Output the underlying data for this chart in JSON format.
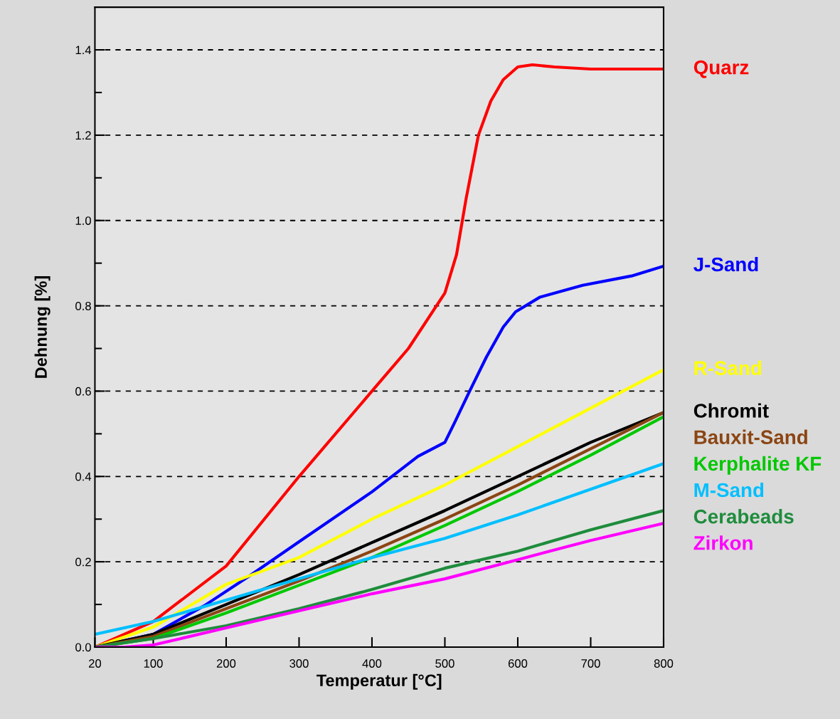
{
  "chart_data": {
    "type": "line",
    "xlabel": "Temperatur [°C]",
    "ylabel": "Dehnung [%]",
    "xlim": [
      20,
      800
    ],
    "xticks": [
      20,
      100,
      200,
      300,
      400,
      500,
      600,
      700,
      800
    ],
    "ylim": [
      0,
      1.5
    ],
    "yticks": [
      {
        "value": 0,
        "label": "0.0"
      },
      {
        "value": 0.1,
        "label": null
      },
      0.2,
      {
        "value": 0.3,
        "label": null
      },
      0.4,
      {
        "value": 0.5,
        "label": null
      },
      0.6,
      {
        "value": 0.7,
        "label": null
      },
      0.8,
      {
        "value": 0.9,
        "label": null
      },
      {
        "value": 1.0,
        "label": "1.0"
      },
      {
        "value": 1.1,
        "label": null
      },
      1.2,
      {
        "value": 1.3,
        "label": null
      },
      1.4
    ],
    "grid": "y",
    "legend": false,
    "marker": "none",
    "line_style": "solid",
    "series": [
      {
        "name": "Quarz",
        "color": "#ff0000",
        "x": [
          20,
          100,
          200,
          300,
          400,
          450,
          500,
          516,
          529,
          546,
          563,
          580,
          600,
          620,
          650,
          700,
          800
        ],
        "values": [
          0,
          0.06,
          0.19,
          0.4,
          0.6,
          0.7,
          0.83,
          0.92,
          1.05,
          1.2,
          1.28,
          1.33,
          1.36,
          1.365,
          1.36,
          1.355,
          1.355
        ]
      },
      {
        "name": "J-Sand",
        "color": "#0000ff",
        "x": [
          20,
          100,
          170,
          232,
          300,
          400,
          463,
          500,
          513,
          534,
          557,
          580,
          597,
          630,
          689,
          756,
          800
        ],
        "values": [
          0,
          0.03,
          0.097,
          0.167,
          0.247,
          0.364,
          0.447,
          0.48,
          0.525,
          0.6,
          0.68,
          0.75,
          0.786,
          0.82,
          0.848,
          0.87,
          0.893
        ]
      },
      {
        "name": "R-Sand",
        "color": "#ffff00",
        "x": [
          20,
          100,
          200,
          300,
          400,
          500,
          600,
          700,
          800
        ],
        "values": [
          0,
          0.047,
          0.147,
          0.21,
          0.3,
          0.38,
          0.47,
          0.56,
          0.65
        ]
      },
      {
        "name": "Chromit",
        "color": "#000000",
        "x": [
          20,
          100,
          200,
          300,
          400,
          500,
          600,
          700,
          800
        ],
        "values": [
          0,
          0.03,
          0.1,
          0.17,
          0.245,
          0.32,
          0.4,
          0.48,
          0.55
        ]
      },
      {
        "name": "Bauxit-Sand",
        "color": "#8b4513",
        "x": [
          20,
          100,
          200,
          300,
          400,
          500,
          600,
          700,
          800
        ],
        "values": [
          0,
          0.025,
          0.09,
          0.155,
          0.225,
          0.3,
          0.38,
          0.465,
          0.55
        ]
      },
      {
        "name": "Kerphalite KF",
        "color": "#00c800",
        "x": [
          20,
          100,
          200,
          300,
          400,
          500,
          600,
          700,
          800
        ],
        "values": [
          0,
          0.02,
          0.08,
          0.145,
          0.21,
          0.285,
          0.365,
          0.45,
          0.54
        ]
      },
      {
        "name": "M-Sand",
        "color": "#00bfff",
        "x": [
          20,
          100,
          200,
          300,
          400,
          500,
          600,
          700,
          800
        ],
        "values": [
          0.03,
          0.06,
          0.11,
          0.16,
          0.21,
          0.255,
          0.31,
          0.37,
          0.43
        ]
      },
      {
        "name": "Cerabeads",
        "color": "#1e8c3c",
        "x": [
          20,
          100,
          200,
          300,
          400,
          500,
          600,
          700,
          800
        ],
        "values": [
          0,
          0.02,
          0.05,
          0.09,
          0.135,
          0.185,
          0.225,
          0.275,
          0.32
        ]
      },
      {
        "name": "Zirkon",
        "color": "#ff00ff",
        "x": [
          20,
          60,
          100,
          200,
          300,
          400,
          500,
          600,
          700,
          800
        ],
        "values": [
          0,
          0,
          0.005,
          0.045,
          0.085,
          0.125,
          0.16,
          0.205,
          0.25,
          0.29
        ]
      }
    ]
  }
}
